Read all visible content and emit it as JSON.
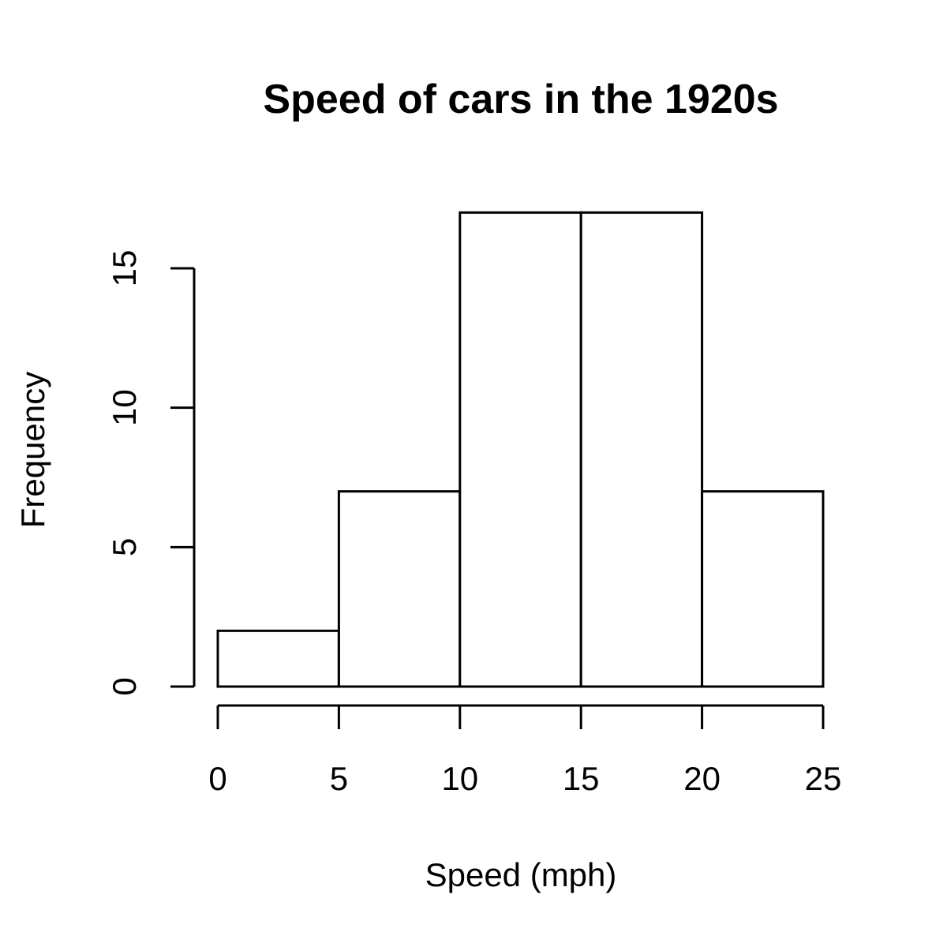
{
  "chart_data": {
    "type": "bar",
    "title": "Speed of cars in the 1920s",
    "xlabel": "Speed (mph)",
    "ylabel": "Frequency",
    "bins": [
      {
        "start": 0,
        "end": 5,
        "count": 2
      },
      {
        "start": 5,
        "end": 10,
        "count": 7
      },
      {
        "start": 10,
        "end": 15,
        "count": 17
      },
      {
        "start": 15,
        "end": 20,
        "count": 17
      },
      {
        "start": 20,
        "end": 25,
        "count": 7
      }
    ],
    "x_ticks": [
      0,
      5,
      10,
      15,
      20,
      25
    ],
    "x_tick_labels": [
      "0",
      "5",
      "10",
      "15",
      "20",
      "25"
    ],
    "y_ticks": [
      0,
      5,
      10,
      15
    ],
    "y_tick_labels": [
      "0",
      "5",
      "10",
      "15"
    ],
    "xlim": [
      0,
      25
    ],
    "ylim": [
      0,
      17
    ],
    "grid": false,
    "bar_fill": "#ffffff",
    "bar_stroke": "#000000"
  }
}
